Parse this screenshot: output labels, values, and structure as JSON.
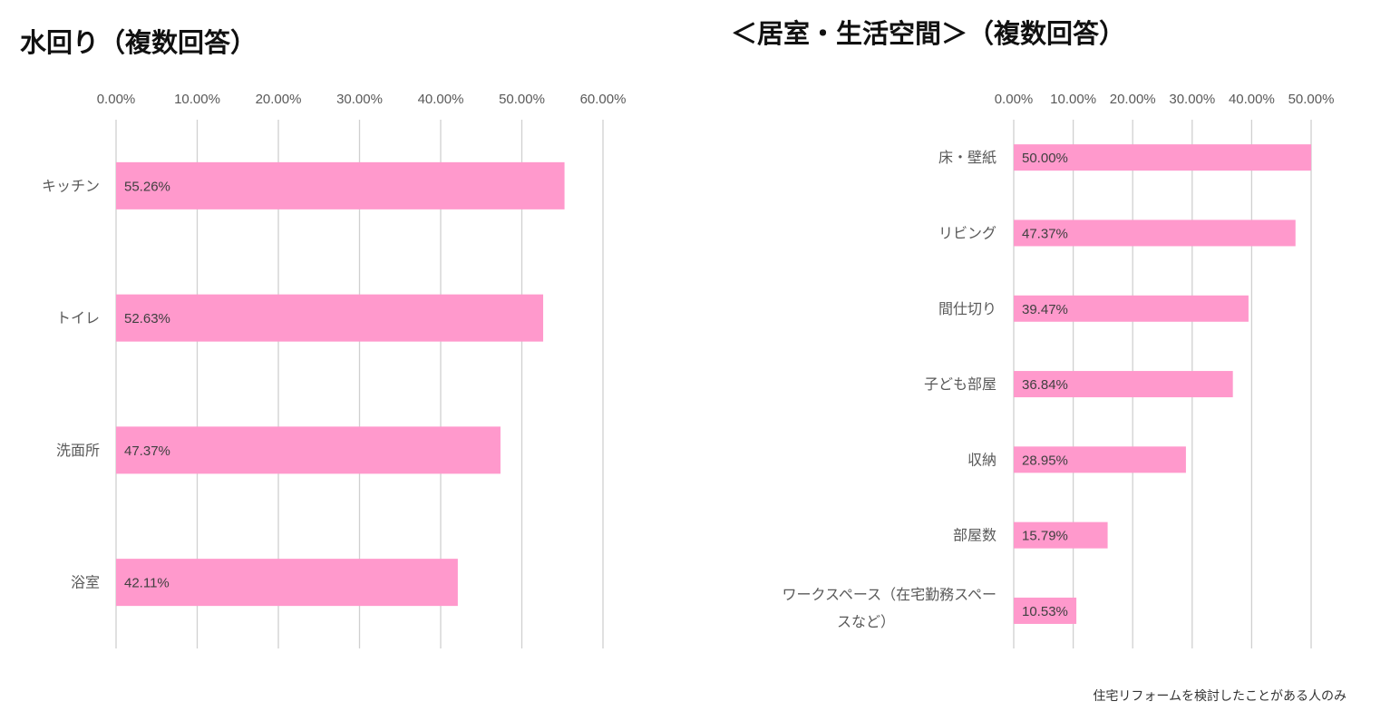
{
  "footnote": "住宅リフォームを検討したことがある人のみ",
  "colors": {
    "bar": "#ff99cc",
    "grid": "#d0d0d0",
    "tick_text": "#595959",
    "label_text": "#404040"
  },
  "chart_data": [
    {
      "type": "bar",
      "orientation": "horizontal",
      "title": "水回り（複数回答）",
      "categories": [
        "キッチン",
        "トイレ",
        "洗面所",
        "浴室"
      ],
      "values": [
        55.26,
        52.63,
        47.37,
        42.11
      ],
      "data_labels": [
        "55.26%",
        "52.63%",
        "47.37%",
        "42.11%"
      ],
      "xlim": [
        0,
        60
      ],
      "x_ticks": [
        "0.00%",
        "10.00%",
        "20.00%",
        "30.00%",
        "40.00%",
        "50.00%",
        "60.00%"
      ],
      "grid": true,
      "axis_position": "top",
      "legend": "none"
    },
    {
      "type": "bar",
      "orientation": "horizontal",
      "title": "＜居室・生活空間＞（複数回答）",
      "categories": [
        "床・壁紙",
        "リビング",
        "間仕切り",
        "子ども部屋",
        "収納",
        "部屋数",
        "ワークスペース（在宅勤務スペースなど）"
      ],
      "category_lines": [
        [
          "床・壁紙"
        ],
        [
          "リビング"
        ],
        [
          "間仕切り"
        ],
        [
          "子ども部屋"
        ],
        [
          "収納"
        ],
        [
          "部屋数"
        ],
        [
          "ワークスペース（在宅勤務スペー",
          "スなど）"
        ]
      ],
      "values": [
        50.0,
        47.37,
        39.47,
        36.84,
        28.95,
        15.79,
        10.53
      ],
      "data_labels": [
        "50.00%",
        "47.37%",
        "39.47%",
        "36.84%",
        "28.95%",
        "15.79%",
        "10.53%"
      ],
      "xlim": [
        0,
        50
      ],
      "x_ticks": [
        "0.00%",
        "10.00%",
        "20.00%",
        "30.00%",
        "40.00%",
        "50.00%"
      ],
      "grid": true,
      "axis_position": "top",
      "legend": "none"
    }
  ]
}
